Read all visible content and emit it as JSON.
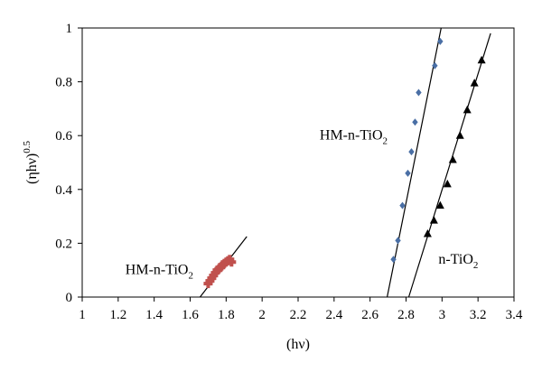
{
  "chart_data": {
    "type": "scatter",
    "xlabel": "(hν)",
    "ylabel": "(ηhν)",
    "ylabel_sup": "0.5",
    "xlim": [
      1,
      3.4
    ],
    "ylim": [
      0,
      1
    ],
    "x_ticks": [
      "1",
      "1.2",
      "1.4",
      "1.6",
      "1.8",
      "2",
      "2.2",
      "2.4",
      "2.6",
      "2.8",
      "3",
      "3.2",
      "3.4"
    ],
    "y_ticks": [
      "0",
      "0.2",
      "0.4",
      "0.6",
      "0.8",
      "1"
    ],
    "grid": false,
    "series": [
      {
        "marker": "diamond",
        "color": "#4a6fa5",
        "points": [
          [
            2.73,
            0.14
          ],
          [
            2.755,
            0.21
          ],
          [
            2.78,
            0.34
          ],
          [
            2.81,
            0.46
          ],
          [
            2.83,
            0.54
          ],
          [
            2.85,
            0.65
          ],
          [
            2.87,
            0.76
          ],
          [
            2.96,
            0.86
          ],
          [
            2.99,
            0.95
          ]
        ],
        "fit_line": [
          [
            2.695,
            0.0
          ],
          [
            2.995,
            1.0
          ]
        ]
      },
      {
        "marker": "triangle",
        "color": "#000000",
        "points": [
          [
            2.92,
            0.235
          ],
          [
            2.955,
            0.285
          ],
          [
            2.99,
            0.34
          ],
          [
            3.03,
            0.42
          ],
          [
            3.06,
            0.51
          ],
          [
            3.1,
            0.6
          ],
          [
            3.14,
            0.695
          ],
          [
            3.18,
            0.795
          ],
          [
            3.22,
            0.88
          ]
        ],
        "fit_line": [
          [
            2.815,
            0.0
          ],
          [
            3.27,
            0.98
          ]
        ]
      },
      {
        "marker": "cross",
        "color": "#c0504d",
        "points": [
          [
            1.7,
            0.05
          ],
          [
            1.71,
            0.06
          ],
          [
            1.72,
            0.07
          ],
          [
            1.73,
            0.08
          ],
          [
            1.74,
            0.09
          ],
          [
            1.75,
            0.1
          ],
          [
            1.76,
            0.105
          ],
          [
            1.77,
            0.11
          ],
          [
            1.78,
            0.12
          ],
          [
            1.79,
            0.125
          ],
          [
            1.8,
            0.13
          ],
          [
            1.81,
            0.135
          ],
          [
            1.82,
            0.14
          ],
          [
            1.83,
            0.13
          ]
        ],
        "fit_line": [
          [
            1.655,
            0.0
          ],
          [
            1.915,
            0.225
          ]
        ]
      }
    ],
    "annotations": [
      {
        "id": "hm-upper",
        "base": "HM-n-TiO",
        "sub": "2",
        "x": 2.32,
        "y": 0.585
      },
      {
        "id": "n-tio2",
        "base": "n-TiO",
        "sub": "2",
        "x": 2.98,
        "y": 0.125
      },
      {
        "id": "hm-lower",
        "base": "HM-n-TiO",
        "sub": "2",
        "x": 1.24,
        "y": 0.085
      }
    ]
  }
}
